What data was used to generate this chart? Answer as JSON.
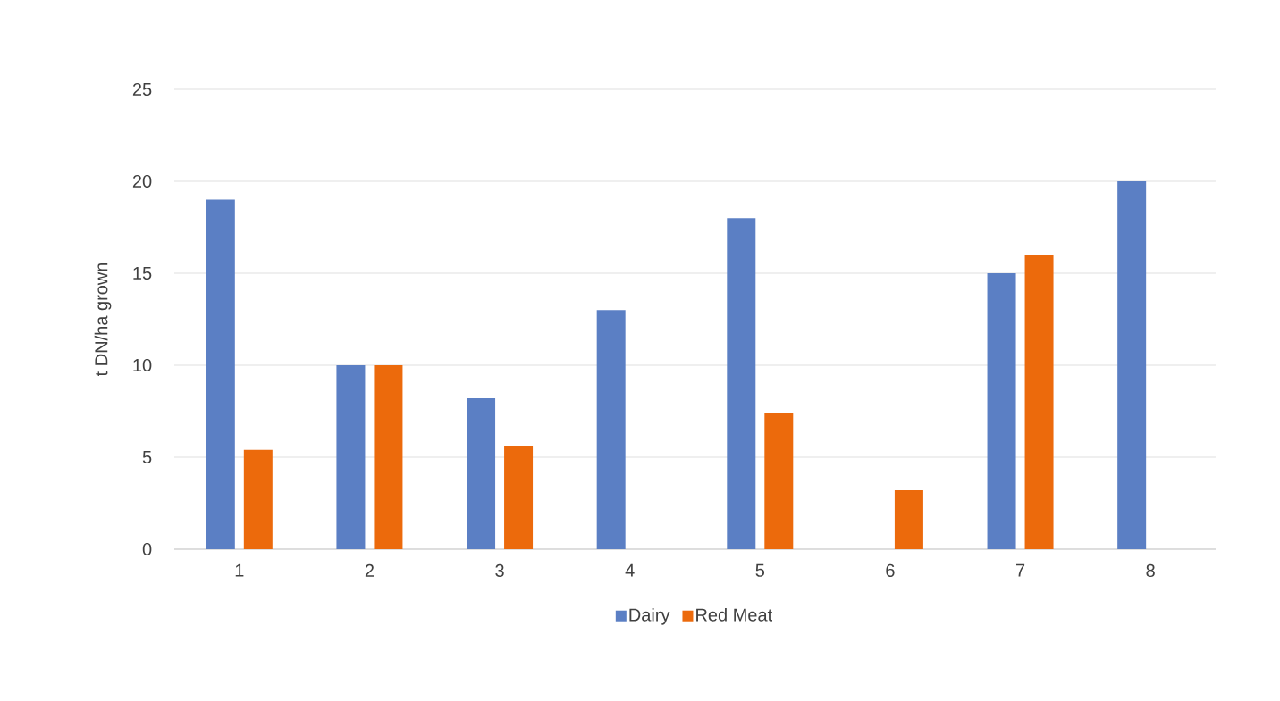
{
  "chart_data": {
    "type": "bar",
    "ylabel": "t DN/ha grown",
    "categories": [
      "1",
      "2",
      "3",
      "4",
      "5",
      "6",
      "7",
      "8"
    ],
    "series": [
      {
        "name": "Dairy",
        "color": "#5b7fc4",
        "values": [
          19,
          10,
          8.2,
          13,
          18,
          null,
          15,
          20
        ]
      },
      {
        "name": "Red Meat",
        "color": "#ec6a0c",
        "values": [
          5.4,
          10,
          5.6,
          null,
          7.4,
          3.2,
          16,
          null
        ]
      }
    ],
    "ylim": [
      0,
      25
    ],
    "yticks": [
      0,
      5,
      10,
      15,
      20,
      25
    ],
    "grid": "y",
    "legend": "bottom"
  }
}
